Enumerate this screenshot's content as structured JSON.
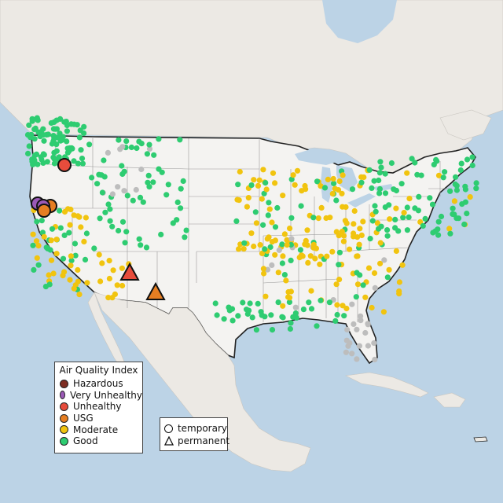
{
  "colors": {
    "water": "#bcd3e6",
    "land": "#ece9e4",
    "us": "#f4f3f1",
    "Hazardous": "#7e2d22",
    "Very Unhealthy": "#9b59b6",
    "Unhealthy": "#e74c3c",
    "USG": "#e67e22",
    "Moderate": "#f1c40f",
    "Good": "#2ecc71",
    "nodata": "#bdbdbd"
  },
  "legend": {
    "title": "Air Quality Index",
    "items": [
      {
        "label": "Hazardous",
        "key": "Hazardous"
      },
      {
        "label": "Very Unhealthy",
        "key": "Very Unhealthy"
      },
      {
        "label": "Unhealthy",
        "key": "Unhealthy"
      },
      {
        "label": "USG",
        "key": "USG"
      },
      {
        "label": "Moderate",
        "key": "Moderate"
      },
      {
        "label": "Good",
        "key": "Good"
      }
    ]
  },
  "type_legend": {
    "items": [
      {
        "label": "temporary",
        "shape": "circle"
      },
      {
        "label": "permanent",
        "shape": "triangle"
      }
    ]
  },
  "big_monitors": [
    {
      "name": "wildfire-monitor-oregon",
      "category": "Unhealthy",
      "shape": "circle"
    },
    {
      "name": "wildfire-monitor-nor-cal-1",
      "category": "Very Unhealthy",
      "shape": "circle"
    },
    {
      "name": "wildfire-monitor-nor-cal-2",
      "category": "USG",
      "shape": "circle"
    },
    {
      "name": "wildfire-monitor-nor-cal-3",
      "category": "Very Unhealthy",
      "shape": "circle"
    },
    {
      "name": "wildfire-monitor-nor-cal-4",
      "category": "USG",
      "shape": "circle"
    },
    {
      "name": "permanent-monitor-arizona",
      "category": "Unhealthy",
      "shape": "triangle"
    },
    {
      "name": "permanent-monitor-new-mexico",
      "category": "USG",
      "shape": "triangle"
    }
  ],
  "station_distribution": {
    "note_categories_shown": [
      "Good",
      "Moderate",
      "nodata"
    ],
    "regions": [
      {
        "region": "pacific-northwest",
        "category": "Good"
      },
      {
        "region": "rockies",
        "category": "Good"
      },
      {
        "region": "california-coast",
        "category": "Moderate"
      },
      {
        "region": "southwest",
        "category": "Moderate"
      },
      {
        "region": "midwest",
        "category": "Moderate"
      },
      {
        "region": "south",
        "category": "Moderate"
      },
      {
        "region": "gulf-coast",
        "category": "Good"
      },
      {
        "region": "northeast",
        "category": "Good"
      },
      {
        "region": "florida",
        "category": "nodata"
      }
    ]
  }
}
